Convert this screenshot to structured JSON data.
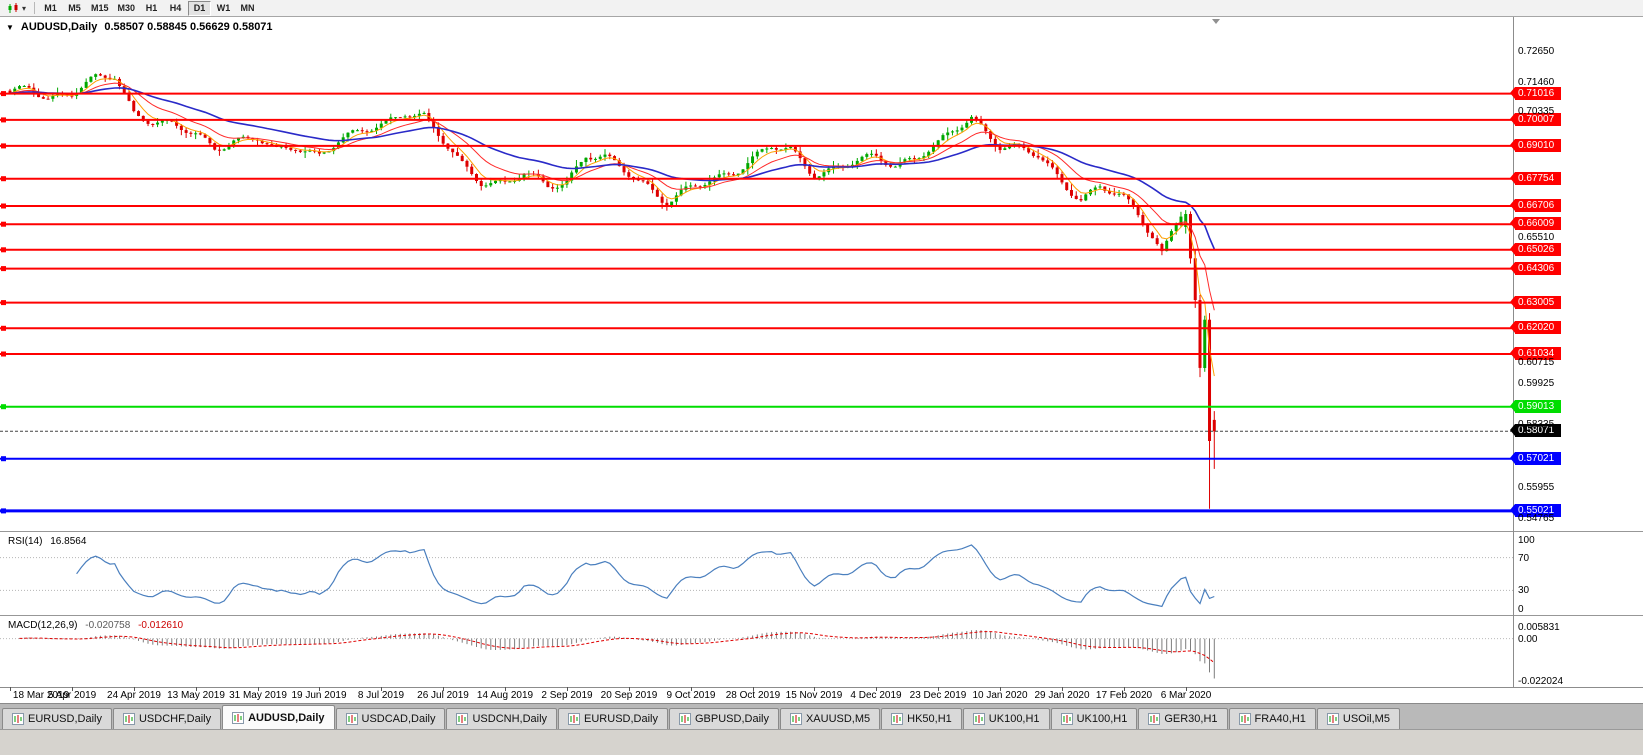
{
  "toolbar": {
    "timeframes": [
      "M1",
      "M5",
      "M15",
      "M30",
      "H1",
      "H4",
      "D1",
      "W1",
      "MN"
    ],
    "active_timeframe": "D1"
  },
  "quote_bar": {
    "expander": "▼",
    "symbol_period": "AUDUSD,Daily",
    "ohlc": "0.58507 0.58845 0.56629 0.58071"
  },
  "chart_data": [
    {
      "type": "candlestick",
      "symbol": "AUDUSD",
      "timeframe": "Daily",
      "current_bar": {
        "open": 0.58507,
        "high": 0.58845,
        "low": 0.56629,
        "close": 0.58071
      },
      "bull_color": "#00a800",
      "bear_color": "#dd0000",
      "candle_count": 254,
      "y_range": [
        0.5425,
        0.7395
      ],
      "price_path_anchors": [
        [
          0,
          0.7095
        ],
        [
          4,
          0.712
        ],
        [
          8,
          0.7085
        ],
        [
          13,
          0.711
        ],
        [
          18,
          0.7155
        ],
        [
          22,
          0.7165
        ],
        [
          26,
          0.703
        ],
        [
          30,
          0.7
        ],
        [
          34,
          0.698
        ],
        [
          39,
          0.694
        ],
        [
          43,
          0.6895
        ],
        [
          47,
          0.6925
        ],
        [
          52,
          0.693
        ],
        [
          56,
          0.6875
        ],
        [
          60,
          0.69
        ],
        [
          65,
          0.687
        ],
        [
          69,
          0.692
        ],
        [
          73,
          0.6945
        ],
        [
          78,
          0.6985
        ],
        [
          83,
          0.7035
        ],
        [
          87,
          0.701
        ],
        [
          91,
          0.6915
        ],
        [
          95,
          0.683
        ],
        [
          99,
          0.677
        ],
        [
          104,
          0.6755
        ],
        [
          108,
          0.679
        ],
        [
          113,
          0.675
        ],
        [
          117,
          0.677
        ],
        [
          121,
          0.6865
        ],
        [
          125,
          0.685
        ],
        [
          130,
          0.6795
        ],
        [
          134,
          0.675
        ],
        [
          138,
          0.6685
        ],
        [
          143,
          0.6735
        ],
        [
          147,
          0.6765
        ],
        [
          152,
          0.6805
        ],
        [
          156,
          0.6855
        ],
        [
          160,
          0.6895
        ],
        [
          164,
          0.688
        ],
        [
          169,
          0.6795
        ],
        [
          173,
          0.6815
        ],
        [
          178,
          0.684
        ],
        [
          182,
          0.6855
        ],
        [
          186,
          0.683
        ],
        [
          190,
          0.686
        ],
        [
          195,
          0.6905
        ],
        [
          199,
          0.6965
        ],
        [
          202,
          0.701
        ],
        [
          205,
          0.696
        ],
        [
          208,
          0.6905
        ],
        [
          212,
          0.689
        ],
        [
          216,
          0.686
        ],
        [
          221,
          0.6765
        ],
        [
          225,
          0.67
        ],
        [
          229,
          0.6745
        ],
        [
          234,
          0.6695
        ],
        [
          237,
          0.664
        ],
        [
          240,
          0.656
        ],
        [
          242,
          0.6495
        ],
        [
          244,
          0.6575
        ],
        [
          246,
          0.663
        ]
      ],
      "final_candles": [
        [
          247,
          0.659,
          0.6655,
          0.6565,
          0.664
        ],
        [
          248,
          0.664,
          0.665,
          0.645,
          0.647
        ],
        [
          249,
          0.647,
          0.6505,
          0.628,
          0.631
        ],
        [
          250,
          0.631,
          0.633,
          0.6015,
          0.605
        ],
        [
          251,
          0.605,
          0.625,
          0.6035,
          0.6235
        ],
        [
          252,
          0.6235,
          0.626,
          0.551,
          0.577
        ],
        [
          253,
          0.58507,
          0.58845,
          0.56629,
          0.58071
        ]
      ],
      "moving_averages": [
        {
          "name": "fast-ma",
          "period": 5,
          "color": "#ff9f00",
          "width": 1
        },
        {
          "name": "mid-ma",
          "period": 13,
          "color": "#ff2a2a",
          "width": 1
        },
        {
          "name": "slow-ma",
          "period": 34,
          "color": "#2a2ac8",
          "width": 1.6
        }
      ],
      "horizontal_lines": [
        {
          "price": 0.71016,
          "label": "0.71016",
          "color": "#ff0000",
          "width": 2
        },
        {
          "price": 0.70007,
          "label": "0.70007",
          "color": "#ff0000",
          "width": 2
        },
        {
          "price": 0.6901,
          "label": "0.69010",
          "color": "#ff0000",
          "width": 2
        },
        {
          "price": 0.67754,
          "label": "0.67754",
          "color": "#ff0000",
          "width": 2
        },
        {
          "price": 0.66706,
          "label": "0.66706",
          "color": "#ff0000",
          "width": 2
        },
        {
          "price": 0.66009,
          "label": "0.66009",
          "color": "#ff0000",
          "width": 2
        },
        {
          "price": 0.65026,
          "label": "0.65026",
          "color": "#ff0000",
          "width": 2
        },
        {
          "price": 0.64306,
          "label": "0.64306",
          "color": "#ff0000",
          "width": 2
        },
        {
          "price": 0.63005,
          "label": "0.63005",
          "color": "#ff0000",
          "width": 2
        },
        {
          "price": 0.6202,
          "label": "0.62020",
          "color": "#ff0000",
          "width": 2
        },
        {
          "price": 0.61034,
          "label": "0.61034",
          "color": "#ff0000",
          "width": 2
        },
        {
          "price": 0.59013,
          "label": "0.59013",
          "color": "#00dd00",
          "width": 2
        },
        {
          "price": 0.57021,
          "label": "0.57021",
          "color": "#0000ff",
          "width": 2
        },
        {
          "price": 0.55021,
          "label": "0.55021",
          "color": "#0000ff",
          "width": 3
        }
      ],
      "current_price": 0.58071,
      "current_price_label": "0.58071"
    },
    {
      "type": "line",
      "name": "RSI",
      "label": "RSI(14)",
      "value": "16.8564",
      "range": [
        0,
        100
      ],
      "levels": [
        70,
        30
      ],
      "axis_labels": [
        "100",
        "70",
        "30",
        "0"
      ],
      "line_color": "#4a7fbe"
    },
    {
      "type": "macd",
      "name": "MACD",
      "label": "MACD(12,26,9)",
      "value_main": "-0.020758",
      "value_signal": "-0.012610",
      "axis_labels": [
        "0.005831",
        "0.00",
        "-0.022024"
      ],
      "histogram_color": "#7d7d7d",
      "signal_color": "#e00000"
    }
  ],
  "price_axis": {
    "plain_labels": [
      "0.72650",
      "0.71460",
      "0.70335",
      "0.65510",
      "0.60715",
      "0.59925",
      "0.58335",
      "0.55955",
      "0.54765"
    ]
  },
  "x_axis_dates": [
    "18 Mar 2019",
    "5 Apr 2019",
    "24 Apr 2019",
    "13 May 2019",
    "31 May 2019",
    "19 Jun 2019",
    "8 Jul 2019",
    "26 Jul 2019",
    "14 Aug 2019",
    "2 Sep 2019",
    "20 Sep 2019",
    "9 Oct 2019",
    "28 Oct 2019",
    "15 Nov 2019",
    "4 Dec 2019",
    "23 Dec 2019",
    "10 Jan 2020",
    "29 Jan 2020",
    "17 Feb 2020",
    "6 Mar 2020"
  ],
  "tab_bar": {
    "tabs": [
      "EURUSD,Daily",
      "USDCHF,Daily",
      "AUDUSD,Daily",
      "USDCAD,Daily",
      "USDCNH,Daily",
      "EURUSD,Daily",
      "GBPUSD,Daily",
      "XAUUSD,M5",
      "HK50,H1",
      "UK100,H1",
      "UK100,H1",
      "GER30,H1",
      "FRA40,H1",
      "USOil,M5"
    ],
    "active_tab_index": 2
  }
}
